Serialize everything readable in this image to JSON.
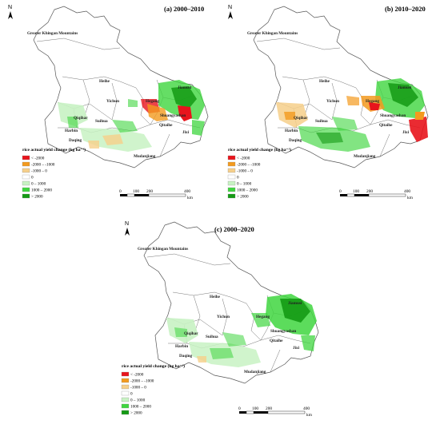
{
  "panels": [
    {
      "title": "(a) 2000–2010"
    },
    {
      "title": "(b) 2010–2020"
    },
    {
      "title": "(c) 2000–2020"
    }
  ],
  "places": [
    "Greater Khingan Mountains",
    "Heihe",
    "Yichun",
    "Hegang",
    "Jiamusi",
    "Shuangyashan",
    "Qiqihar",
    "Suihua",
    "Harbin",
    "Qitaihe",
    "Jixi",
    "Daqing",
    "Mudanjiang"
  ],
  "north_label": "N",
  "legend": {
    "title": "rice actual yield change (kg ha⁻¹)",
    "items": [
      {
        "label": "< -2000",
        "color": "#e8141c"
      },
      {
        "label": "-2000 – -1000",
        "color": "#f39a1e"
      },
      {
        "label": "-1000 – 0",
        "color": "#f6cf8a"
      },
      {
        "label": "0",
        "color": "#ffffff"
      },
      {
        "label": "0 – 1000",
        "color": "#c8f2c3"
      },
      {
        "label": "1000 – 2000",
        "color": "#3fd63f"
      },
      {
        "label": "> 2000",
        "color": "#149a14"
      }
    ]
  },
  "scale": {
    "ticks": [
      "0",
      "100",
      "200",
      "400"
    ],
    "unit": "km"
  }
}
